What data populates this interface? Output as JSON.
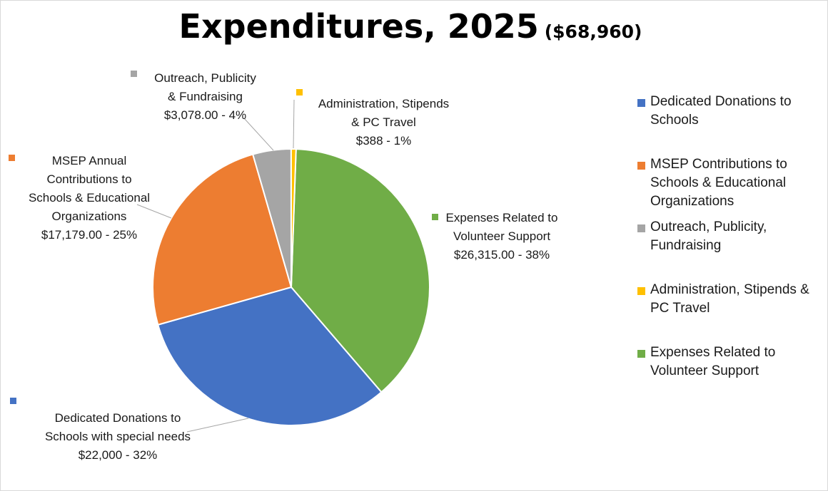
{
  "title": {
    "main": "Expenditures, 2025",
    "sub": "($68,960)"
  },
  "colors": {
    "blue": "#4472C4",
    "orange": "#ED7D31",
    "gray": "#A5A5A5",
    "yellow": "#FFC000",
    "green": "#70AD47"
  },
  "chart_data": {
    "type": "pie",
    "title": "Expenditures, 2025 ($68,960)",
    "total": 68960,
    "legend_position": "right",
    "slices": [
      {
        "name": "Expenses Related to Volunteer Support",
        "value": 26315.0,
        "percent": 38,
        "color": "#70AD47",
        "label_lines": [
          "Expenses Related to",
          "Volunteer Support",
          "$26,315.00  - 38%"
        ]
      },
      {
        "name": "Dedicated Donations to Schools",
        "value": 22000,
        "percent": 32,
        "color": "#4472C4",
        "label_lines": [
          "Dedicated Donations to",
          "Schools with special needs",
          "$22,000  - 32%"
        ]
      },
      {
        "name": "MSEP Contributions to Schools & Educational Organizations",
        "value": 17179.0,
        "percent": 25,
        "color": "#ED7D31",
        "label_lines": [
          "MSEP Annual",
          "Contributions to",
          "Schools & Educational",
          "Organizations",
          "$17,179.00  - 25%"
        ]
      },
      {
        "name": "Outreach, Publicity, Fundraising",
        "value": 3078.0,
        "percent": 4,
        "color": "#A5A5A5",
        "label_lines": [
          "Outreach, Publicity",
          "& Fundraising",
          "$3,078.00 - 4%"
        ]
      },
      {
        "name": "Administration, Stipends & PC Travel",
        "value": 388,
        "percent": 1,
        "color": "#FFC000",
        "label_lines": [
          "Administration, Stipends",
          "& PC Travel",
          "$388  - 1%"
        ]
      }
    ]
  },
  "legend": [
    {
      "lines": [
        "Dedicated Donations to",
        "Schools"
      ],
      "color": "#4472C4"
    },
    {
      "lines": [
        "MSEP Contributions to",
        "Schools & Educational",
        "Organizations"
      ],
      "color": "#ED7D31"
    },
    {
      "lines": [
        "Outreach, Publicity,",
        "Fundraising"
      ],
      "color": "#A5A5A5"
    },
    {
      "lines": [
        "Administration, Stipends &",
        "PC Travel"
      ],
      "color": "#FFC000"
    },
    {
      "lines": [
        "Expenses Related to",
        "Volunteer Support"
      ],
      "color": "#70AD47"
    }
  ]
}
